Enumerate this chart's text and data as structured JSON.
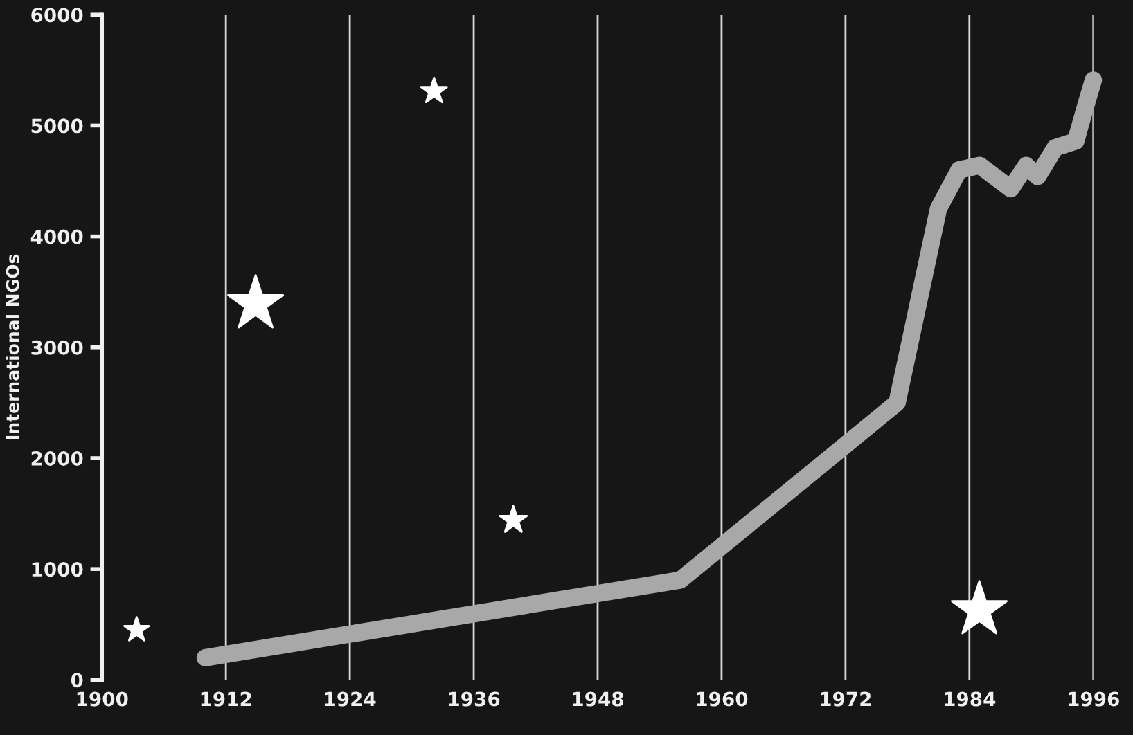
{
  "chart_data": {
    "type": "line",
    "ylabel": "International NGOs",
    "x": [
      1910,
      1956,
      1977,
      1981,
      1983,
      1985,
      1988,
      1989.5,
      1990.6,
      1992.3,
      1994.3,
      1995.2,
      1996
    ],
    "series": [
      {
        "color": "#a8a8a8",
        "values": [
          200,
          900,
          2500,
          4250,
          4600,
          4640,
          4430,
          4640,
          4540,
          4800,
          4860,
          5160,
          5410
        ]
      }
    ],
    "xlim": [
      1900,
      1996
    ],
    "xticks": [
      1900,
      1912,
      1924,
      1936,
      1948,
      1960,
      1972,
      1984,
      1996
    ],
    "ylim": [
      0,
      6000
    ],
    "yticks": [
      0,
      1000,
      2000,
      3000,
      4000,
      5000,
      6000
    ],
    "grid": "x",
    "legend": false,
    "line_style": "solid"
  }
}
